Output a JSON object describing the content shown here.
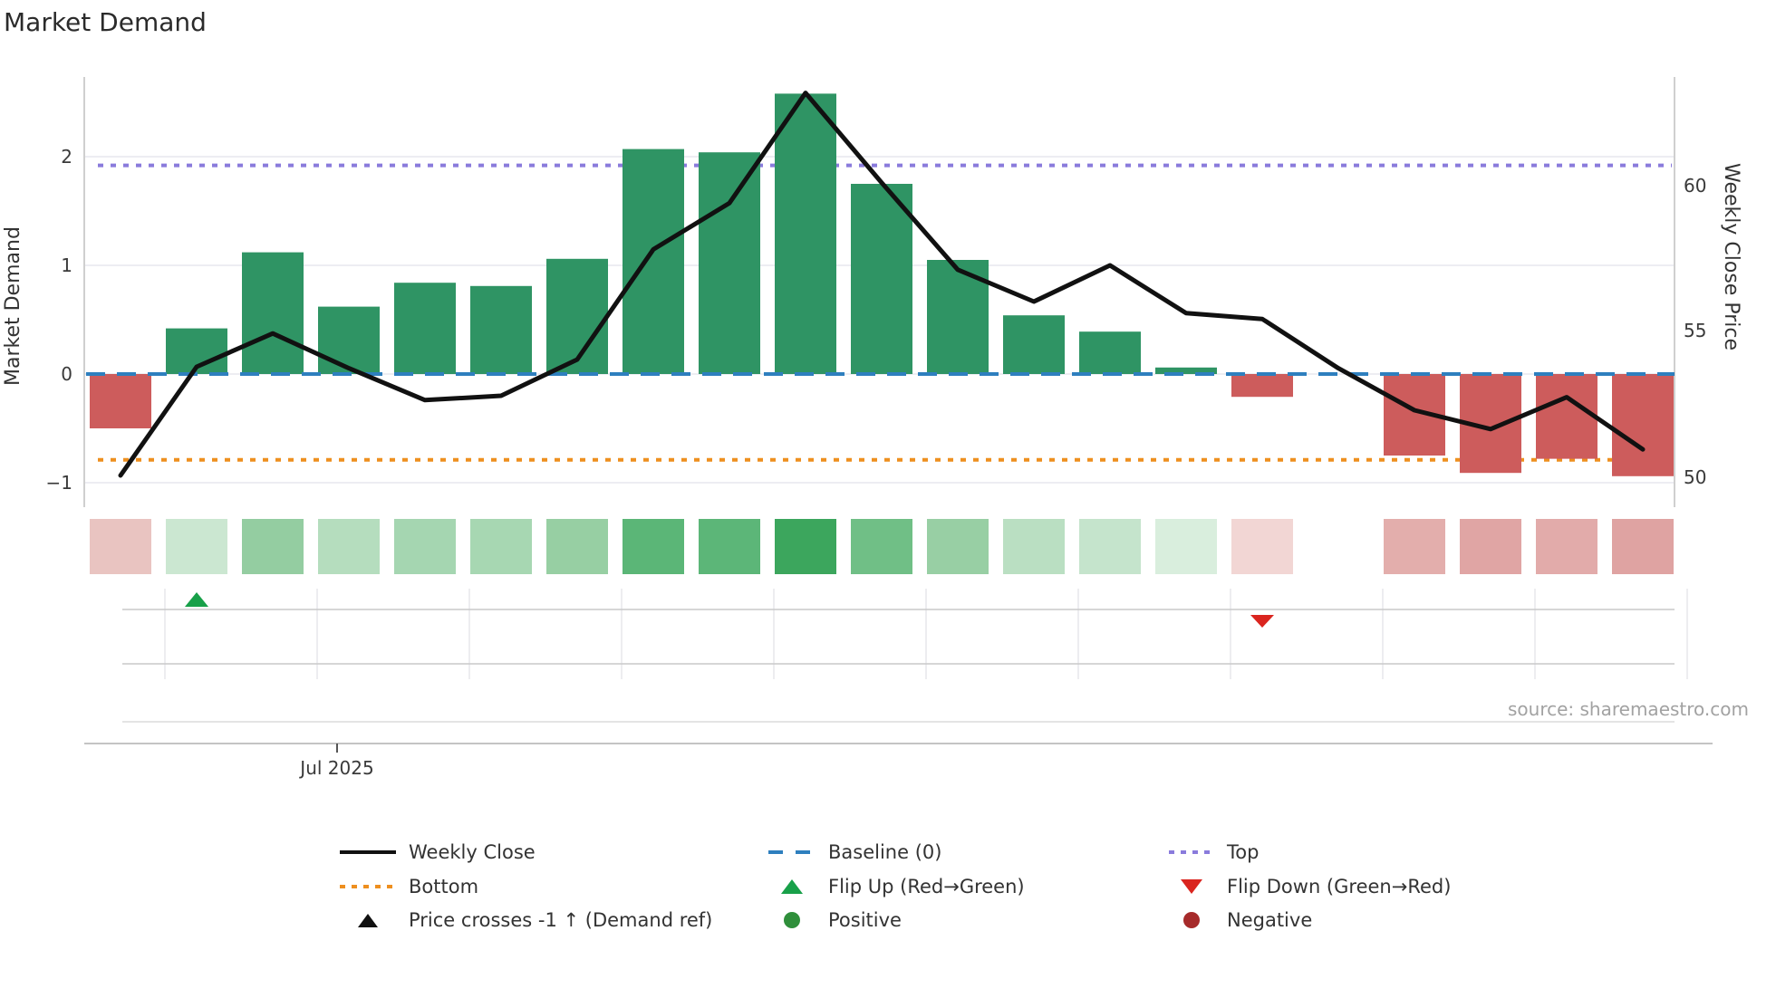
{
  "title": "Market Demand",
  "axes": {
    "left": {
      "label": "Market Demand",
      "ticks": [
        "2",
        "1",
        "0",
        "−1"
      ]
    },
    "right": {
      "label": "Weekly Close Price",
      "ticks": [
        "60",
        "55",
        "50"
      ]
    },
    "x": {
      "tick": "Jul 2025"
    }
  },
  "source": "source: sharemaestro.com",
  "legend": {
    "weekly_close": "Weekly Close",
    "baseline": "Baseline (0)",
    "top": "Top",
    "bottom": "Bottom",
    "flip_up": "Flip Up (Red→Green)",
    "flip_down": "Flip Down (Green→Red)",
    "price_crosses": "Price crosses -1 ↑ (Demand ref)",
    "positive": "Positive",
    "negative": "Negative"
  },
  "colors": {
    "bar_positive": "#2f9464",
    "bar_negative": "#cd5c5c",
    "price_line": "#111111",
    "baseline": "#2e7fbe",
    "top_line": "#8a7bdc",
    "bottom_line": "#ee8f1f",
    "flip_up": "#18a049",
    "flip_down": "#da251f",
    "positive_dot": "#2f8f3b",
    "negative_dot": "#a62a2a"
  },
  "chart_data": {
    "type": "bar",
    "title": "Market Demand",
    "x_count": 21,
    "x_tick_label": "Jul 2025",
    "xlabel": "",
    "ylabel_left": "Market Demand",
    "ylabel_right": "Weekly Close Price",
    "left_axis_ticks": [
      2,
      1,
      0,
      -1
    ],
    "right_axis_ticks": [
      60,
      55,
      50
    ],
    "axis_ranges": {
      "demand": [
        -1.15,
        2.73
      ],
      "price": [
        49.2,
        63.75
      ]
    },
    "grid": true,
    "legend_position": "bottom",
    "series": [
      {
        "name": "Market Demand",
        "type": "bar",
        "axis": "left",
        "values": [
          -0.5,
          0.42,
          1.12,
          0.62,
          0.84,
          0.81,
          1.06,
          2.07,
          2.04,
          2.58,
          1.75,
          1.05,
          0.54,
          0.39,
          0.06,
          -0.21,
          null,
          -0.75,
          -0.91,
          -0.78,
          -0.94
        ]
      },
      {
        "name": "Weekly Close",
        "type": "line",
        "axis": "right",
        "values": [
          50.0,
          53.75,
          54.9,
          53.7,
          52.6,
          52.75,
          54.0,
          57.8,
          59.4,
          63.2,
          60.1,
          57.1,
          56.0,
          57.25,
          55.6,
          55.4,
          53.7,
          52.25,
          51.6,
          52.7,
          50.9
        ]
      }
    ],
    "reference_lines": {
      "baseline": 0,
      "top": 1.92,
      "bottom": -0.79
    },
    "heatmap_colors": [
      "#e9c4c1",
      "#cbe7d1",
      "#94cda1",
      "#b5ddbe",
      "#a5d6b1",
      "#a7d7b2",
      "#97cfa3",
      "#5bb677",
      "#5cb678",
      "#3ca65d",
      "#70bf86",
      "#98cfa4",
      "#badfc2",
      "#c5e4cc",
      "#d9eedd",
      "#f2d6d4",
      null,
      "#e3aeac",
      "#e0a5a4",
      "#e2abaa",
      "#dfa3a2"
    ],
    "markers": {
      "flip_up_week": 2,
      "flip_down_week": 16
    }
  }
}
